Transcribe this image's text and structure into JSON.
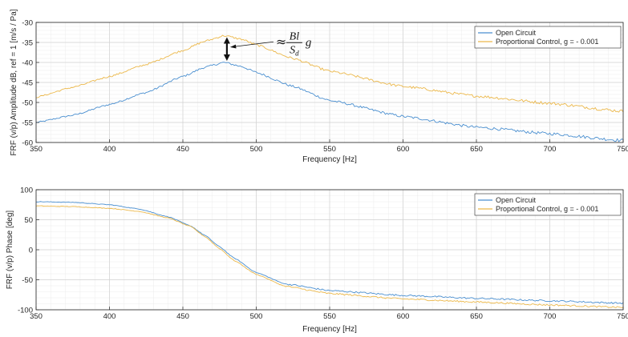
{
  "chart_data": [
    {
      "type": "line",
      "title": "",
      "xlabel": "Frequency [Hz]",
      "ylabel": "FRF (v/p) Amplitude dB, ref = 1 [m/s / Pa]",
      "xlim": [
        350,
        750
      ],
      "ylim": [
        -60,
        -30
      ],
      "xticks": [
        350,
        400,
        450,
        500,
        550,
        600,
        650,
        700,
        750
      ],
      "yticks": [
        -60,
        -55,
        -50,
        -45,
        -40,
        -35,
        -30
      ],
      "grid": true,
      "minor_grid": true,
      "legend_position": "top-right",
      "series": [
        {
          "name": "Open Circuit",
          "color": "#4a8fd0",
          "x": [
            350,
            375,
            400,
            425,
            450,
            465,
            478,
            490,
            500,
            525,
            550,
            600,
            650,
            700,
            750
          ],
          "y": [
            -55,
            -53.2,
            -50.5,
            -47.5,
            -43.5,
            -41.2,
            -40,
            -41,
            -42.5,
            -46,
            -49.5,
            -53.5,
            -56.2,
            -57.8,
            -59.5
          ]
        },
        {
          "name": "Proportional Control, g = - 0.001",
          "color": "#ecb84a",
          "x": [
            350,
            375,
            400,
            425,
            450,
            465,
            478,
            490,
            500,
            525,
            550,
            600,
            650,
            700,
            750
          ],
          "y": [
            -48.7,
            -46.2,
            -43.5,
            -40.5,
            -37,
            -34.7,
            -33.3,
            -34.2,
            -35.6,
            -39,
            -42.2,
            -46,
            -48.4,
            -50.2,
            -52.2
          ]
        }
      ],
      "annotation": {
        "x": 480,
        "y_top": -33.3,
        "y_bottom": -40,
        "approx_symbol": "≈",
        "numerator": "Bl",
        "denominator": "S",
        "denominator_sub": "d",
        "trailing": "g"
      }
    },
    {
      "type": "line",
      "title": "",
      "xlabel": "Frequency [Hz]",
      "ylabel": "FRF (v/p) Phase [deg]",
      "xlim": [
        350,
        750
      ],
      "ylim": [
        -100,
        100
      ],
      "xticks": [
        350,
        400,
        450,
        500,
        550,
        600,
        650,
        700,
        750
      ],
      "yticks": [
        -100,
        -50,
        0,
        50,
        100
      ],
      "grid": true,
      "minor_grid": true,
      "legend_position": "top-right",
      "series": [
        {
          "name": "Open Circuit",
          "color": "#4a8fd0",
          "x": [
            350,
            375,
            400,
            420,
            440,
            455,
            465,
            475,
            485,
            500,
            520,
            550,
            600,
            650,
            700,
            750
          ],
          "y": [
            80,
            79,
            75,
            68,
            55,
            40,
            24,
            5,
            -14,
            -38,
            -57,
            -68,
            -76,
            -81,
            -85,
            -89
          ]
        },
        {
          "name": "Proportional Control, g = - 0.001",
          "color": "#ecb84a",
          "x": [
            350,
            375,
            400,
            420,
            440,
            455,
            465,
            475,
            485,
            500,
            520,
            550,
            600,
            650,
            700,
            750
          ],
          "y": [
            73,
            72,
            69,
            64,
            53,
            39,
            22,
            2,
            -18,
            -41,
            -61,
            -73,
            -82,
            -87,
            -92,
            -96
          ]
        }
      ]
    }
  ]
}
